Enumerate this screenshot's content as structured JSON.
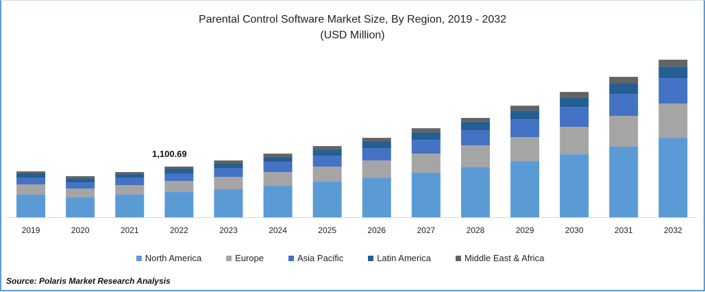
{
  "chart_data": {
    "type": "bar",
    "stacked": true,
    "title": "Parental Control Software Market Size, By Region, 2019 - 2032",
    "subtitle": "(USD Million)",
    "xlabel": "",
    "ylabel": "",
    "ylim": [
      0,
      3780
    ],
    "grid": false,
    "legend_position": "bottom",
    "categories": [
      "2019",
      "2020",
      "2021",
      "2022",
      "2023",
      "2024",
      "2025",
      "2026",
      "2027",
      "2028",
      "2029",
      "2030",
      "2031",
      "2032"
    ],
    "series": [
      {
        "name": "North America",
        "color": "#5b9bd5",
        "values": [
          495,
          431,
          491,
          550,
          610,
          684,
          773,
          862,
          967,
          1086,
          1219,
          1368,
          1532,
          1725
        ]
      },
      {
        "name": "Europe",
        "color": "#a5a5a5",
        "values": [
          219,
          193,
          208,
          238,
          268,
          297,
          327,
          372,
          416,
          476,
          520,
          595,
          669,
          744
        ]
      },
      {
        "name": "Asia Pacific",
        "color": "#4472c4",
        "values": [
          149,
          134,
          164,
          164,
          193,
          223,
          238,
          268,
          297,
          327,
          387,
          431,
          476,
          550
        ]
      },
      {
        "name": "Latin America",
        "color": "#255e91",
        "values": [
          89,
          89,
          74,
          104,
          104,
          104,
          134,
          149,
          164,
          183,
          193,
          208,
          238,
          253
        ]
      },
      {
        "name": "Middle East & Africa",
        "color": "#636363",
        "values": [
          45,
          45,
          45,
          45,
          59,
          74,
          74,
          74,
          89,
          85,
          104,
          119,
          134,
          149
        ]
      }
    ],
    "annotations": [
      {
        "category": "2022",
        "text": "1,100.69"
      }
    ]
  },
  "source": "Source: Polaris  Market Research Analysis"
}
